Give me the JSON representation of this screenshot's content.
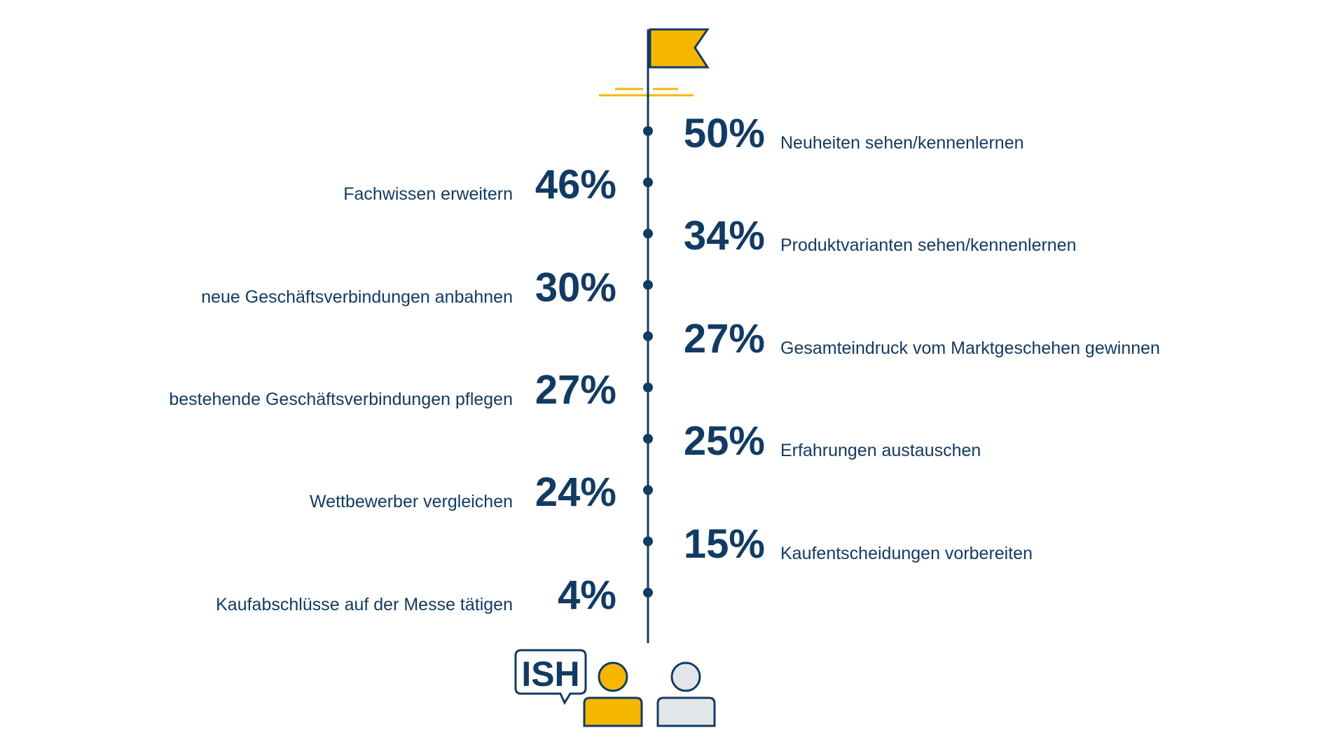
{
  "colors": {
    "navy": "#123B63",
    "yellow": "#F5B700",
    "gray_fill": "#E3E6E8",
    "white": "#FFFFFF"
  },
  "logo": {
    "text": "ISH"
  },
  "icons": [
    "flag-icon",
    "person-visitor-icon",
    "person-other-icon",
    "speech-bubble-icon"
  ],
  "chart_data": {
    "type": "table",
    "title": "",
    "unit": "%",
    "items": [
      {
        "rank": 1,
        "value": 50,
        "value_label": "50%",
        "label": "Neuheiten sehen/kennenlernen",
        "side": "right"
      },
      {
        "rank": 2,
        "value": 46,
        "value_label": "46%",
        "label": "Fachwissen erweitern",
        "side": "left"
      },
      {
        "rank": 3,
        "value": 34,
        "value_label": "34%",
        "label": "Produktvarianten sehen/kennenlernen",
        "side": "right"
      },
      {
        "rank": 4,
        "value": 30,
        "value_label": "30%",
        "label": "neue Geschäftsverbindungen anbahnen",
        "side": "left"
      },
      {
        "rank": 5,
        "value": 27,
        "value_label": "27%",
        "label": "Gesamteindruck vom Marktgeschehen gewinnen",
        "side": "right"
      },
      {
        "rank": 6,
        "value": 27,
        "value_label": "27%",
        "label": "bestehende Geschäftsverbindungen pflegen",
        "side": "left"
      },
      {
        "rank": 7,
        "value": 25,
        "value_label": "25%",
        "label": "Erfahrungen austauschen",
        "side": "right"
      },
      {
        "rank": 8,
        "value": 24,
        "value_label": "24%",
        "label": "Wettbewerber vergleichen",
        "side": "left"
      },
      {
        "rank": 9,
        "value": 15,
        "value_label": "15%",
        "label": "Kaufentscheidungen vorbereiten",
        "side": "right"
      },
      {
        "rank": 10,
        "value": 4,
        "value_label": "4%",
        "label": "Kaufabschlüsse auf der Messe tätigen",
        "side": "left"
      }
    ]
  }
}
